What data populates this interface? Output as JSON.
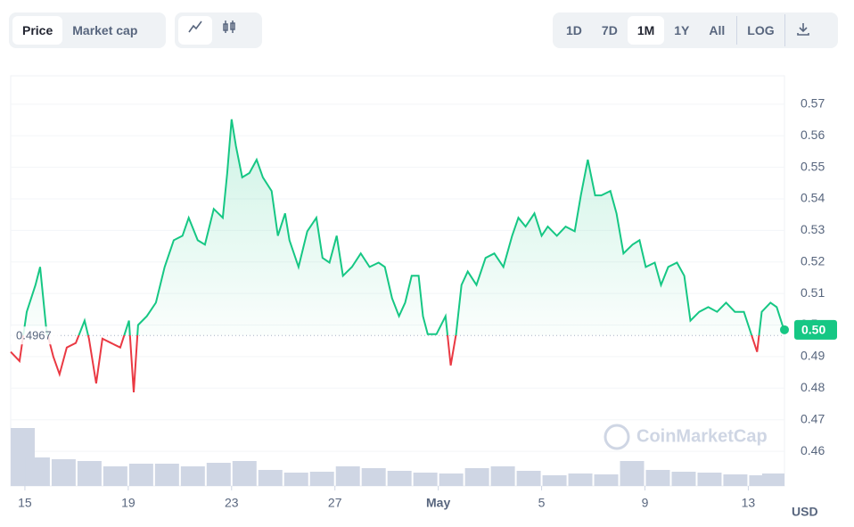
{
  "toolbar": {
    "view_tabs": [
      "Price",
      "Market cap"
    ],
    "active_view": 0,
    "range_tabs": [
      "1D",
      "7D",
      "1M",
      "1Y",
      "All"
    ],
    "active_range": 2,
    "log": "LOG"
  },
  "chart_data": {
    "type": "line",
    "x": [
      -0.55,
      -0.21,
      0.07,
      0.41,
      0.59,
      0.83,
      1.1,
      1.34,
      1.62,
      1.97,
      2.31,
      2.48,
      2.76,
      3.0,
      3.34,
      3.69,
      4.03,
      4.21,
      4.38,
      4.72,
      5.07,
      5.41,
      5.76,
      6.1,
      6.34,
      6.69,
      6.97,
      7.31,
      7.66,
      7.83,
      8.0,
      8.17,
      8.41,
      8.69,
      8.97,
      9.21,
      9.55,
      9.79,
      10.07,
      10.24,
      10.59,
      10.93,
      11.28,
      11.52,
      11.79,
      12.07,
      12.31,
      12.66,
      13.0,
      13.34,
      13.69,
      13.93,
      14.21,
      14.48,
      14.72,
      14.97,
      15.24,
      15.41,
      15.59,
      15.93,
      16.28,
      16.48,
      16.69,
      16.9,
      17.14,
      17.48,
      17.83,
      18.17,
      18.52,
      18.86,
      19.1,
      19.38,
      19.72,
      20.0,
      20.24,
      20.59,
      20.93,
      21.28,
      21.52,
      21.79,
      22.07,
      22.31,
      22.66,
      22.9,
      23.17,
      23.52,
      23.79,
      24.03,
      24.38,
      24.62,
      24.9,
      25.24,
      25.52,
      25.76,
      26.1,
      26.45,
      26.79,
      27.14,
      27.48,
      27.83,
      28.17,
      28.34,
      28.52,
      28.86,
      29.1,
      29.38
    ],
    "values": [
      0.4915,
      0.4886,
      0.5042,
      0.5127,
      0.5184,
      0.4985,
      0.49,
      0.4844,
      0.4929,
      0.4943,
      0.5014,
      0.4957,
      0.4815,
      0.4957,
      0.4943,
      0.4929,
      0.5014,
      0.4787,
      0.5,
      0.5028,
      0.5071,
      0.5184,
      0.5269,
      0.5283,
      0.534,
      0.5269,
      0.5255,
      0.5368,
      0.534,
      0.5482,
      0.5652,
      0.5567,
      0.5468,
      0.5482,
      0.5524,
      0.5468,
      0.5425,
      0.5283,
      0.5354,
      0.5269,
      0.5184,
      0.5297,
      0.534,
      0.5213,
      0.5198,
      0.5283,
      0.5156,
      0.5184,
      0.5227,
      0.5184,
      0.5198,
      0.5184,
      0.5085,
      0.5028,
      0.5071,
      0.5156,
      0.5156,
      0.5028,
      0.4971,
      0.4971,
      0.5028,
      0.4872,
      0.4971,
      0.5127,
      0.517,
      0.5127,
      0.5213,
      0.5227,
      0.5184,
      0.5283,
      0.534,
      0.5312,
      0.5354,
      0.5283,
      0.5312,
      0.5283,
      0.5312,
      0.5297,
      0.5411,
      0.5524,
      0.5411,
      0.5411,
      0.5425,
      0.5354,
      0.5227,
      0.5255,
      0.5269,
      0.5184,
      0.5198,
      0.5127,
      0.5184,
      0.5198,
      0.5156,
      0.5014,
      0.5042,
      0.5057,
      0.5042,
      0.5071,
      0.5042,
      0.5042,
      0.4957,
      0.4915,
      0.5042,
      0.5071,
      0.5057,
      0.4985
    ],
    "baseline": 0.4967,
    "current_price": {
      "value": 0.4985,
      "label": "0.50"
    },
    "color_up": "#16c784",
    "color_down": "#ea3943",
    "xlim": [
      -0.55,
      29.4
    ],
    "xticks": [
      {
        "value": 0,
        "label": "15"
      },
      {
        "value": 4,
        "label": "19"
      },
      {
        "value": 8,
        "label": "23"
      },
      {
        "value": 12,
        "label": "27"
      },
      {
        "value": 16,
        "label": "May"
      },
      {
        "value": 20,
        "label": "5"
      },
      {
        "value": 24,
        "label": "9"
      },
      {
        "value": 28,
        "label": "13"
      }
    ],
    "ylim": [
      0.449,
      0.579
    ],
    "yticks": [
      0.46,
      0.47,
      0.48,
      0.49,
      0.5,
      0.51,
      0.52,
      0.53,
      0.54,
      0.55,
      0.56,
      0.57
    ],
    "y_unit": "USD",
    "watermark": "CoinMarketCap",
    "grid": true,
    "volume": {
      "x": [
        -0.5,
        0.5,
        1.5,
        2.5,
        3.5,
        4.5,
        5.5,
        6.5,
        7.5,
        8.5,
        9.5,
        10.5,
        11.5,
        12.5,
        13.5,
        14.5,
        15.5,
        16.5,
        17.5,
        18.5,
        19.5,
        20.5,
        21.5,
        22.5,
        23.5,
        24.5,
        25.5,
        26.5,
        27.5,
        28.5,
        29
      ],
      "values": [
        65,
        32,
        30,
        28,
        22,
        25,
        25,
        22,
        26,
        28,
        18,
        15,
        16,
        22,
        20,
        17,
        15,
        14,
        20,
        22,
        17,
        12,
        14,
        13,
        28,
        18,
        16,
        15,
        13,
        12,
        14
      ],
      "color": "#cfd6e4"
    }
  }
}
